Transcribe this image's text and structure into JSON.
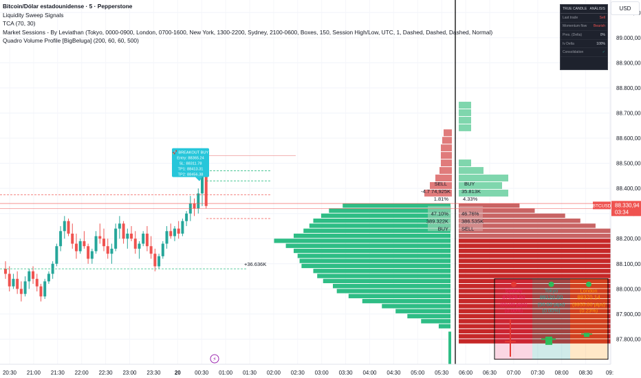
{
  "legend": {
    "title": "Bitcoin/Dólar estadounidense · 5 · Pepperstone",
    "indicators": [
      "Liquidity Sweep Signals",
      "TCA (70, 30)",
      "Market Sessions - By Leviathan (Tokyo, 0000-0900, London, 0700-1600, New York, 1300-2200, Sydney, 2100-0600, Boxes, 150, Session High/Low, UTC, 1, Dashed, Dashed, Dashed, Normal)",
      "Quadro Volume Profile [BigBeluga] (200, 60, 60, 500)"
    ]
  },
  "currency_button": "USD",
  "stats_panel": {
    "tabs": [
      "TRUE CANDLE",
      "ANÁLISIS"
    ],
    "rows": [
      {
        "label": "Last trade",
        "value": "Sell"
      },
      {
        "label": "Momentum flow",
        "value": "Bearish"
      },
      {
        "label": "Pres. (Delta)",
        "value": "0%"
      },
      {
        "label": "Iv Delta",
        "value": "100%"
      },
      {
        "label": "Consolidation",
        "value": "✓"
      }
    ]
  },
  "price_tag": {
    "symbol": "BTCUSD",
    "price": "88.330,94",
    "countdown": "03:34"
  },
  "signal_box": {
    "lines": [
      "🚀 BREAKOUT BUY",
      "Entry: 88365.24",
      "SL: 88311.78",
      "TP1: 88413.31",
      "TP2: 88456.38"
    ]
  },
  "volume_labels": {
    "left_zone": [
      "+36.636K"
    ],
    "top_sell": [
      "SELL",
      "-4.7 74,925K",
      "1.81%"
    ],
    "top_buy": [
      "BUY",
      "35.813K",
      "4.33%"
    ],
    "mid_left": [
      "47.10%",
      "389.322K",
      "BUY"
    ],
    "mid_right": [
      "46.76%",
      "386.535K",
      "SELL"
    ]
  },
  "sessions": [
    {
      "name": "Sydney",
      "price": "87928.90",
      "pips": "(00.00 pips)",
      "pct": "(0.00%)",
      "color": "#e91e63"
    },
    {
      "name": "Tokyo",
      "price": "88120.00",
      "pips": "(00.00 pips)",
      "pct": "(0.00%)",
      "color": "#26a69a"
    },
    {
      "name": "London",
      "price": "88370.14",
      "pips": "(9955.00 pips)",
      "pct": "(0.23%)",
      "color": "#ff9800"
    }
  ],
  "chart_data": {
    "type": "candlestick",
    "title": "Bitcoin/Dólar estadounidense · 5 · Pepperstone",
    "ylim": [
      87700,
      89150
    ],
    "y_ticks": [
      87800,
      87900,
      88000,
      88100,
      88200,
      88300,
      88400,
      88500,
      88600,
      88700,
      88800,
      88900,
      89000,
      89100
    ],
    "y_tick_labels": [
      "87.800,00",
      "87.900,00",
      "88.000,00",
      "88.100,00",
      "88.200,00",
      "88.300,00",
      "88.400,00",
      "88.500,00",
      "88.600,00",
      "88.700,00",
      "88.800,00",
      "88.900,00",
      "89.000,00",
      "89.100,00"
    ],
    "x_tick_labels": [
      "20:30",
      "21:00",
      "21:30",
      "22:00",
      "22:30",
      "23:00",
      "23:30",
      "20",
      "00:30",
      "01:00",
      "01:30",
      "02:00",
      "02:30",
      "03:00",
      "03:30",
      "04:00",
      "04:30",
      "05:00",
      "05:30",
      "06:00",
      "06:30",
      "07:00",
      "07:30",
      "08:00",
      "08:30",
      "09:"
    ],
    "last_price": 88330.94,
    "candles": [
      {
        "o": 88080,
        "h": 88110,
        "l": 88040,
        "c": 88060
      },
      {
        "o": 88060,
        "h": 88090,
        "l": 87990,
        "c": 88010
      },
      {
        "o": 88010,
        "h": 88060,
        "l": 88000,
        "c": 88040
      },
      {
        "o": 88040,
        "h": 88070,
        "l": 87980,
        "c": 88000
      },
      {
        "o": 88000,
        "h": 88030,
        "l": 87950,
        "c": 87980
      },
      {
        "o": 87980,
        "h": 88050,
        "l": 87970,
        "c": 88030
      },
      {
        "o": 88030,
        "h": 88080,
        "l": 88000,
        "c": 88070
      },
      {
        "o": 88070,
        "h": 88090,
        "l": 88020,
        "c": 88040
      },
      {
        "o": 88040,
        "h": 88060,
        "l": 87990,
        "c": 88010
      },
      {
        "o": 88010,
        "h": 88020,
        "l": 87950,
        "c": 87970
      },
      {
        "o": 87970,
        "h": 88040,
        "l": 87960,
        "c": 88030
      },
      {
        "o": 88030,
        "h": 88070,
        "l": 88020,
        "c": 88060
      },
      {
        "o": 88060,
        "h": 88110,
        "l": 88040,
        "c": 88100
      },
      {
        "o": 88100,
        "h": 88180,
        "l": 88090,
        "c": 88170
      },
      {
        "o": 88170,
        "h": 88250,
        "l": 88150,
        "c": 88230
      },
      {
        "o": 88230,
        "h": 88290,
        "l": 88200,
        "c": 88270
      },
      {
        "o": 88270,
        "h": 88280,
        "l": 88210,
        "c": 88220
      },
      {
        "o": 88220,
        "h": 88260,
        "l": 88160,
        "c": 88180
      },
      {
        "o": 88180,
        "h": 88220,
        "l": 88120,
        "c": 88150
      },
      {
        "o": 88150,
        "h": 88200,
        "l": 88140,
        "c": 88190
      },
      {
        "o": 88190,
        "h": 88230,
        "l": 88160,
        "c": 88170
      },
      {
        "o": 88170,
        "h": 88180,
        "l": 88100,
        "c": 88120
      },
      {
        "o": 88120,
        "h": 88160,
        "l": 88100,
        "c": 88150
      },
      {
        "o": 88150,
        "h": 88230,
        "l": 88140,
        "c": 88210
      },
      {
        "o": 88210,
        "h": 88260,
        "l": 88180,
        "c": 88200
      },
      {
        "o": 88200,
        "h": 88240,
        "l": 88150,
        "c": 88170
      },
      {
        "o": 88170,
        "h": 88200,
        "l": 88120,
        "c": 88140
      },
      {
        "o": 88140,
        "h": 88180,
        "l": 88100,
        "c": 88160
      },
      {
        "o": 88160,
        "h": 88260,
        "l": 88150,
        "c": 88240
      },
      {
        "o": 88240,
        "h": 88290,
        "l": 88200,
        "c": 88260
      },
      {
        "o": 88260,
        "h": 88270,
        "l": 88180,
        "c": 88200
      },
      {
        "o": 88200,
        "h": 88240,
        "l": 88160,
        "c": 88220
      },
      {
        "o": 88220,
        "h": 88250,
        "l": 88190,
        "c": 88200
      },
      {
        "o": 88200,
        "h": 88230,
        "l": 88140,
        "c": 88160
      },
      {
        "o": 88160,
        "h": 88190,
        "l": 88120,
        "c": 88180
      },
      {
        "o": 88180,
        "h": 88230,
        "l": 88170,
        "c": 88220
      },
      {
        "o": 88220,
        "h": 88250,
        "l": 88150,
        "c": 88170
      },
      {
        "o": 88170,
        "h": 88210,
        "l": 88120,
        "c": 88140
      },
      {
        "o": 88140,
        "h": 88160,
        "l": 88070,
        "c": 88090
      },
      {
        "o": 88090,
        "h": 88140,
        "l": 88080,
        "c": 88130
      },
      {
        "o": 88130,
        "h": 88190,
        "l": 88120,
        "c": 88180
      },
      {
        "o": 88180,
        "h": 88250,
        "l": 88160,
        "c": 88230
      },
      {
        "o": 88230,
        "h": 88260,
        "l": 88200,
        "c": 88210
      },
      {
        "o": 88210,
        "h": 88250,
        "l": 88190,
        "c": 88240
      },
      {
        "o": 88240,
        "h": 88270,
        "l": 88200,
        "c": 88220
      },
      {
        "o": 88220,
        "h": 88280,
        "l": 88210,
        "c": 88270
      },
      {
        "o": 88270,
        "h": 88310,
        "l": 88250,
        "c": 88300
      },
      {
        "o": 88300,
        "h": 88370,
        "l": 88270,
        "c": 88340
      },
      {
        "o": 88340,
        "h": 88360,
        "l": 88290,
        "c": 88320
      },
      {
        "o": 88320,
        "h": 88400,
        "l": 88300,
        "c": 88380
      },
      {
        "o": 88380,
        "h": 88500,
        "l": 88330,
        "c": 88470
      },
      {
        "o": 88470,
        "h": 88480,
        "l": 88320,
        "c": 88330
      }
    ],
    "volume_profile_left": [
      {
        "price": 88330,
        "volume": 0.55
      },
      {
        "price": 88310,
        "volume": 0.62
      },
      {
        "price": 88290,
        "volume": 0.66
      },
      {
        "price": 88270,
        "volume": 0.7
      },
      {
        "price": 88250,
        "volume": 0.72
      },
      {
        "price": 88230,
        "volume": 0.75
      },
      {
        "price": 88210,
        "volume": 0.8
      },
      {
        "price": 88190,
        "volume": 0.9
      },
      {
        "price": 88170,
        "volume": 0.84
      },
      {
        "price": 88150,
        "volume": 0.8
      },
      {
        "price": 88130,
        "volume": 0.78
      },
      {
        "price": 88110,
        "volume": 0.77
      },
      {
        "price": 88090,
        "volume": 0.76
      },
      {
        "price": 88070,
        "volume": 0.7
      },
      {
        "price": 88050,
        "volume": 0.68
      },
      {
        "price": 88030,
        "volume": 0.65
      },
      {
        "price": 88010,
        "volume": 0.6
      },
      {
        "price": 87990,
        "volume": 0.58
      },
      {
        "price": 87970,
        "volume": 0.52
      },
      {
        "price": 87950,
        "volume": 0.45
      },
      {
        "price": 87930,
        "volume": 0.35
      },
      {
        "price": 87910,
        "volume": 0.28
      },
      {
        "price": 87890,
        "volume": 0.22
      },
      {
        "price": 87870,
        "volume": 0.15
      },
      {
        "price": 87850,
        "volume": 0.06
      }
    ],
    "volume_profile_right": [
      {
        "price": 88330,
        "volume": 0.4
      },
      {
        "price": 88310,
        "volume": 0.5
      },
      {
        "price": 88290,
        "volume": 0.7
      },
      {
        "price": 88270,
        "volume": 0.8
      },
      {
        "price": 88250,
        "volume": 0.9
      },
      {
        "price": 88230,
        "volume": 1.0
      },
      {
        "price": 88210,
        "volume": 1.0
      },
      {
        "price": 88190,
        "volume": 1.0
      },
      {
        "price": 88170,
        "volume": 1.0
      },
      {
        "price": 88150,
        "volume": 1.0
      },
      {
        "price": 88130,
        "volume": 1.0
      },
      {
        "price": 88110,
        "volume": 1.0
      },
      {
        "price": 88090,
        "volume": 1.0
      },
      {
        "price": 88070,
        "volume": 1.0
      },
      {
        "price": 88050,
        "volume": 1.0
      },
      {
        "price": 88030,
        "volume": 1.0
      },
      {
        "price": 88010,
        "volume": 1.0
      },
      {
        "price": 87990,
        "volume": 1.0
      },
      {
        "price": 87970,
        "volume": 1.0
      },
      {
        "price": 87950,
        "volume": 1.0
      },
      {
        "price": 87930,
        "volume": 1.0
      },
      {
        "price": 87910,
        "volume": 1.0
      },
      {
        "price": 87890,
        "volume": 1.0
      },
      {
        "price": 87870,
        "volume": 1.0
      },
      {
        "price": 87850,
        "volume": 1.0
      },
      {
        "price": 87830,
        "volume": 1.0
      },
      {
        "price": 87810,
        "volume": 1.0
      },
      {
        "price": 87790,
        "volume": 1.0
      }
    ],
    "volume_profile_top_left": [
      {
        "price": 88620,
        "volume": 0.3
      },
      {
        "price": 88590,
        "volume": 0.35
      },
      {
        "price": 88560,
        "volume": 0.4
      },
      {
        "price": 88530,
        "volume": 0.4
      },
      {
        "price": 88500,
        "volume": 0.4
      },
      {
        "price": 88470,
        "volume": 0.45
      },
      {
        "price": 88440,
        "volume": 0.6
      },
      {
        "price": 88410,
        "volume": 0.8
      },
      {
        "price": 88380,
        "volume": 1.0
      }
    ],
    "volume_profile_top_right": [
      {
        "price": 88730,
        "volume": 0.2
      },
      {
        "price": 88700,
        "volume": 0.2
      },
      {
        "price": 88670,
        "volume": 0.2
      },
      {
        "price": 88640,
        "volume": 0.2
      },
      {
        "price": 88500,
        "volume": 0.2
      },
      {
        "price": 88470,
        "volume": 0.4
      },
      {
        "price": 88440,
        "volume": 0.8
      },
      {
        "price": 88410,
        "volume": 0.7
      },
      {
        "price": 88380,
        "volume": 0.8
      }
    ],
    "colors": {
      "up": "#26a69a",
      "down": "#ef5350",
      "buy_profile": "#2ebd85",
      "sell_profile": "#c62828",
      "sell_profile_light": "#c86464"
    }
  }
}
